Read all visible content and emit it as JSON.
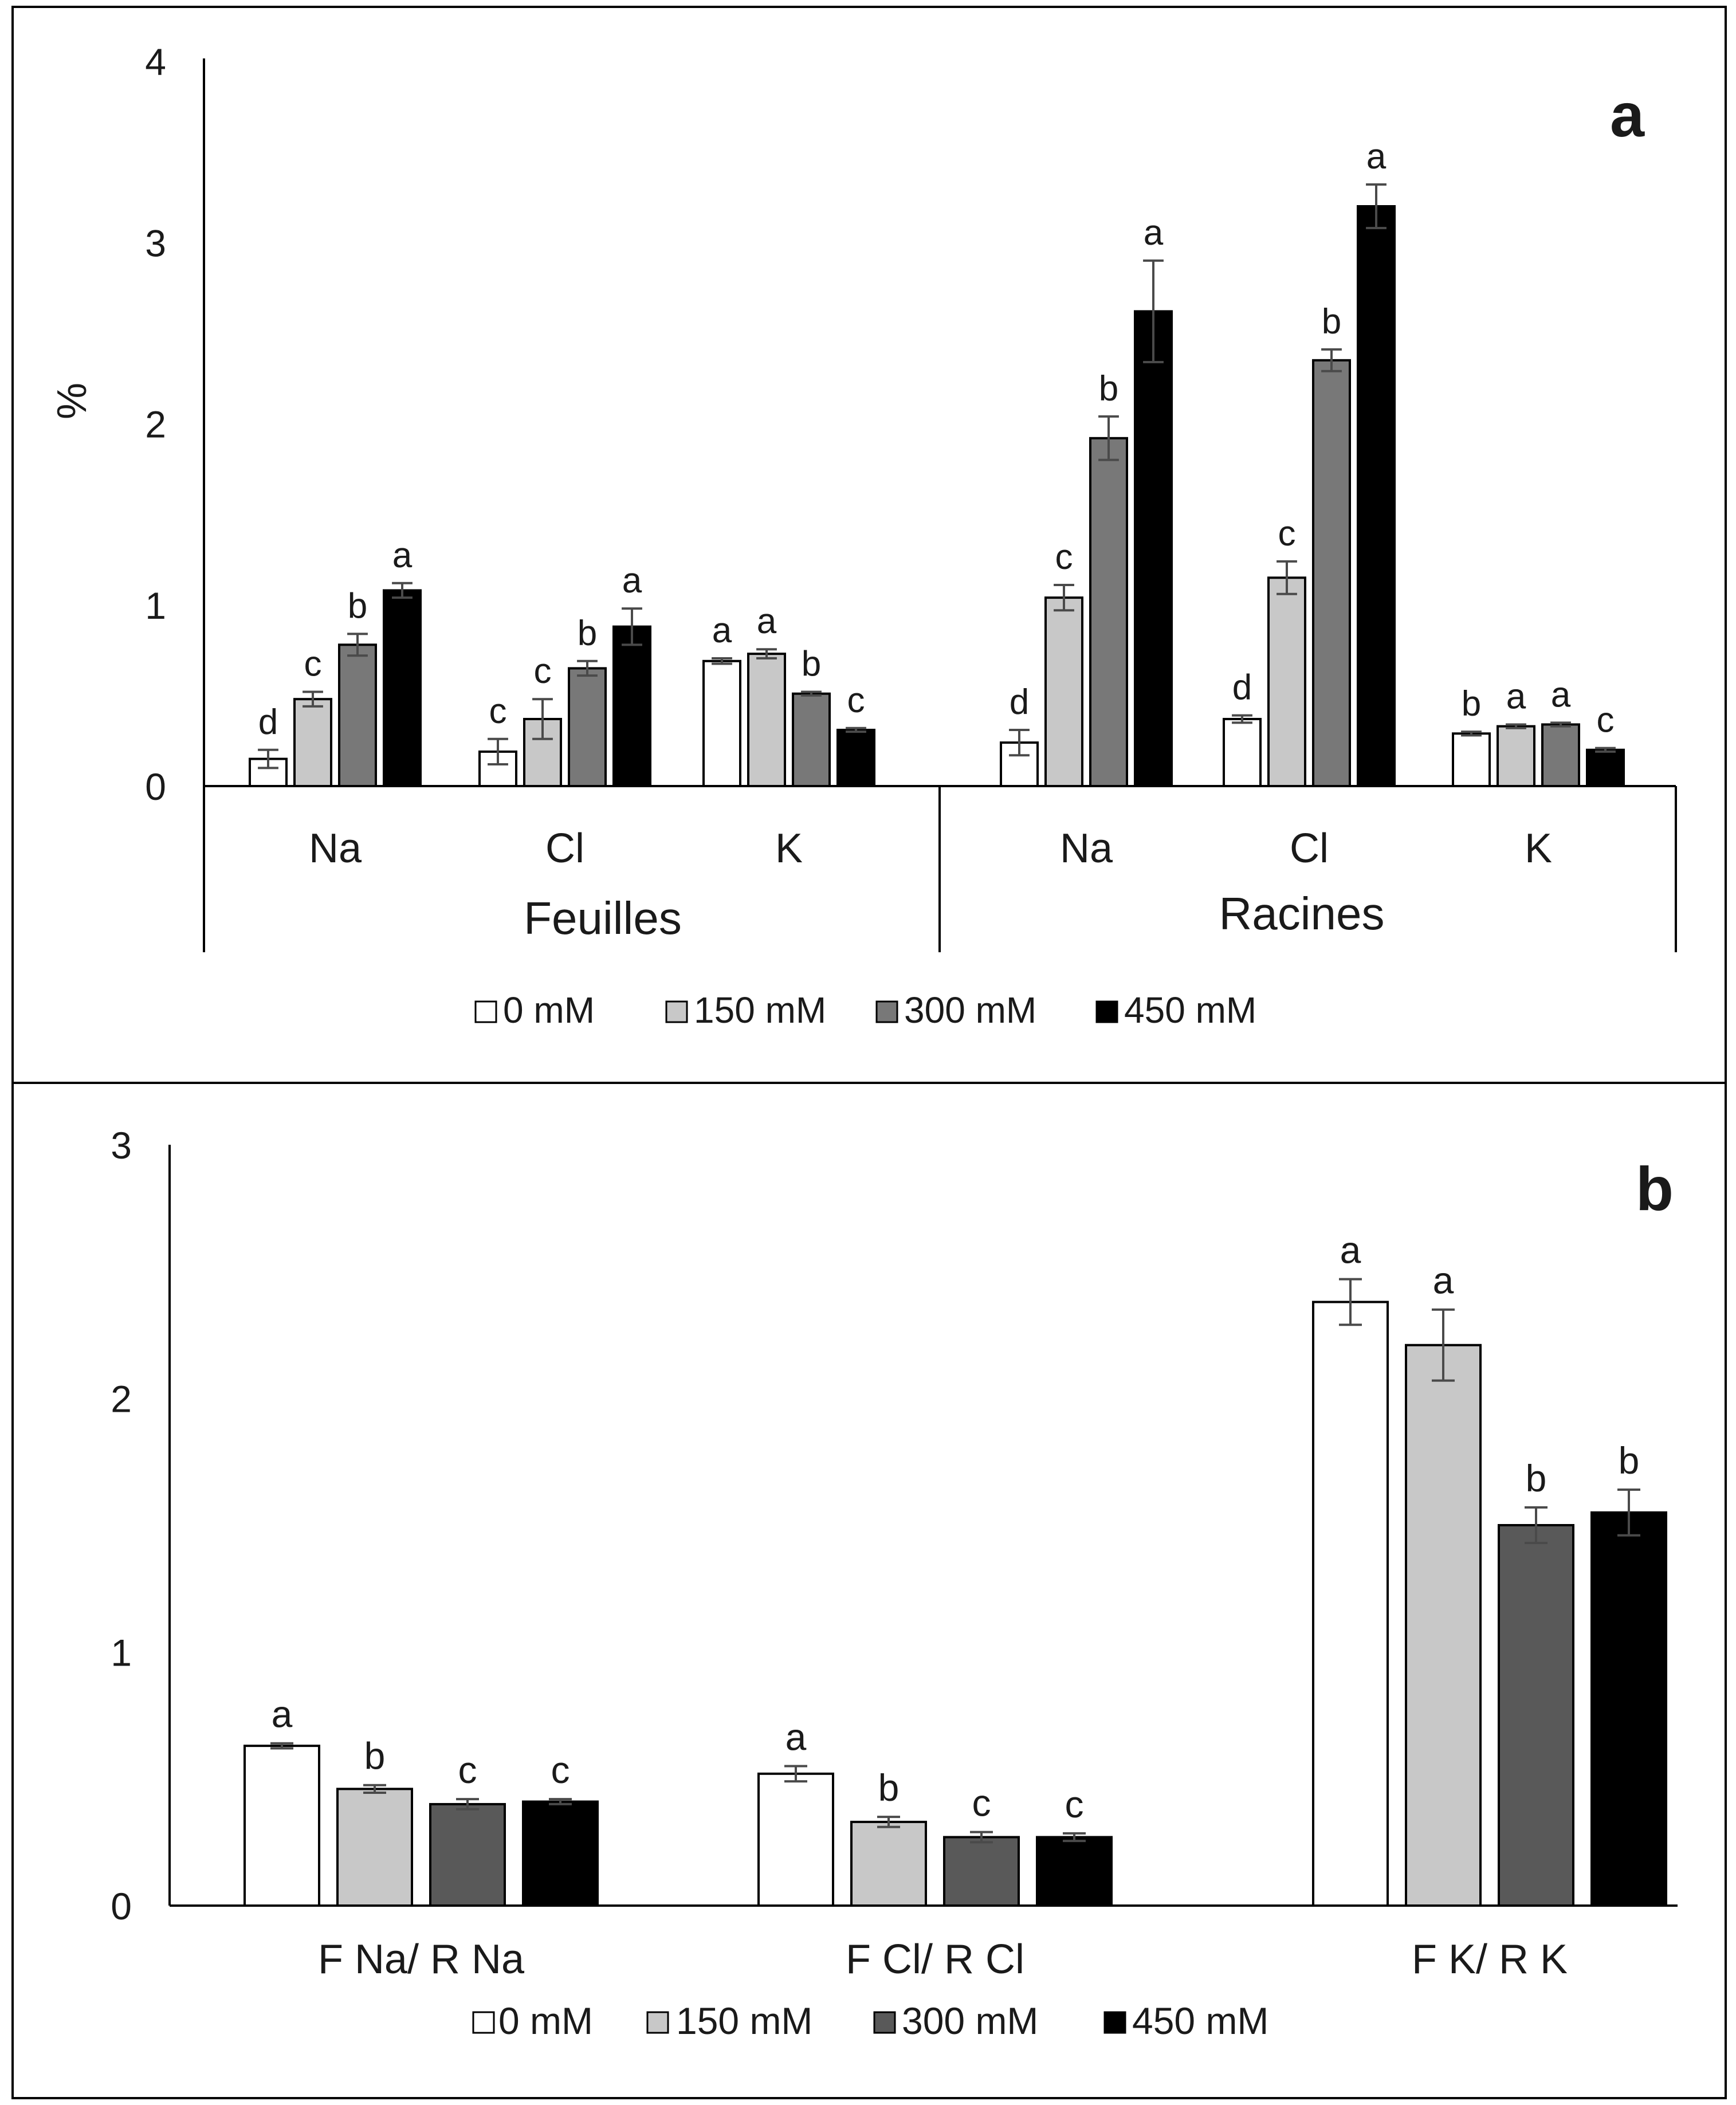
{
  "panels": [
    {
      "panel_label": "a",
      "y_label": "%",
      "legend": [
        "0 mM",
        "150 mM",
        "300 mM",
        "450 mM"
      ],
      "chart_data": {
        "type": "bar",
        "ylabel": "%",
        "ylim": [
          0,
          4
        ],
        "yticks": [
          "0",
          "1",
          "2",
          "3",
          "4"
        ],
        "groups": [
          "Feuilles",
          "Racines"
        ],
        "categories": [
          {
            "label": "Na",
            "group": "Feuilles"
          },
          {
            "label": "Cl",
            "group": "Feuilles"
          },
          {
            "label": "K",
            "group": "Feuilles"
          },
          {
            "label": "Na",
            "group": "Racines"
          },
          {
            "label": "Cl",
            "group": "Racines"
          },
          {
            "label": "K",
            "group": "Racines"
          }
        ],
        "series": [
          {
            "name": "0 mM",
            "color": "#ffffff",
            "values": [
              0.15,
              0.19,
              0.69,
              0.24,
              0.37,
              0.29
            ],
            "errors": [
              0.05,
              0.07,
              0.015,
              0.07,
              0.02,
              0.01
            ],
            "letters": [
              "d",
              "c",
              "a",
              "d",
              "d",
              "b"
            ]
          },
          {
            "name": "150 mM",
            "color": "#c8c8c8",
            "values": [
              0.48,
              0.37,
              0.73,
              1.04,
              1.15,
              0.33
            ],
            "errors": [
              0.04,
              0.11,
              0.025,
              0.07,
              0.09,
              0.01
            ],
            "letters": [
              "c",
              "c",
              "a",
              "c",
              "c",
              "a"
            ]
          },
          {
            "name": "300 mM",
            "color": "#787878",
            "values": [
              0.78,
              0.65,
              0.51,
              1.92,
              2.35,
              0.34
            ],
            "errors": [
              0.06,
              0.04,
              0.01,
              0.12,
              0.06,
              0.01
            ],
            "letters": [
              "b",
              "b",
              "b",
              "b",
              "b",
              "a"
            ]
          },
          {
            "name": "450 mM",
            "color": "#000000",
            "values": [
              1.08,
              0.88,
              0.31,
              2.62,
              3.2,
              0.2
            ],
            "errors": [
              0.04,
              0.1,
              0.01,
              0.28,
              0.12,
              0.01
            ],
            "letters": [
              "a",
              "a",
              "c",
              "a",
              "a",
              "c"
            ]
          }
        ]
      }
    },
    {
      "panel_label": "b",
      "legend": [
        "0 mM",
        "150 mM",
        "300 mM",
        "450 mM"
      ],
      "chart_data": {
        "type": "bar",
        "ylabel": "",
        "ylim": [
          0,
          3
        ],
        "yticks": [
          "0",
          "1",
          "2",
          "3"
        ],
        "categories": [
          {
            "label": "F Na/ R Na"
          },
          {
            "label": "F Cl/ R Cl"
          },
          {
            "label": "F K/ R K"
          }
        ],
        "series": [
          {
            "name": "0 mM",
            "color": "#ffffff",
            "values": [
              0.63,
              0.52,
              2.38
            ],
            "errors": [
              0.01,
              0.03,
              0.09
            ],
            "letters": [
              "a",
              "a",
              "a"
            ]
          },
          {
            "name": "150 mM",
            "color": "#c8c8c8",
            "values": [
              0.46,
              0.33,
              2.21
            ],
            "errors": [
              0.015,
              0.02,
              0.14
            ],
            "letters": [
              "b",
              "b",
              "a"
            ]
          },
          {
            "name": "300 mM",
            "color": "#595959",
            "values": [
              0.4,
              0.27,
              1.5
            ],
            "errors": [
              0.02,
              0.02,
              0.07
            ],
            "letters": [
              "c",
              "c",
              "b"
            ]
          },
          {
            "name": "450 mM",
            "color": "#000000",
            "values": [
              0.41,
              0.27,
              1.55
            ],
            "errors": [
              0.01,
              0.015,
              0.09
            ],
            "letters": [
              "c",
              "c",
              "b"
            ]
          }
        ]
      }
    }
  ]
}
